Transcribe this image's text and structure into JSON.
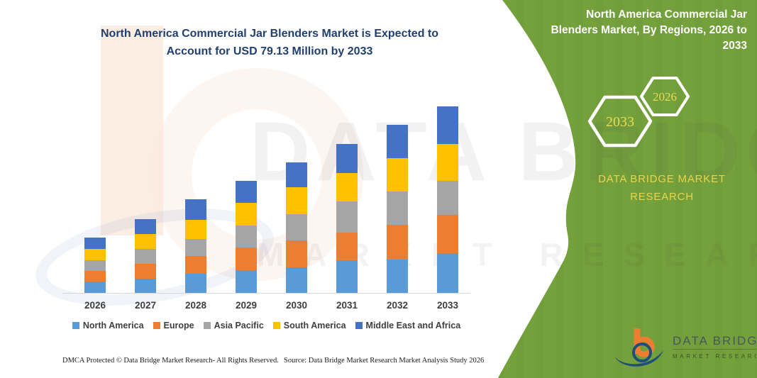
{
  "page_title": "North America Commercial Jar Blenders Market chart",
  "colors": {
    "green_panel": "#74A13C",
    "title_navy": "#21406F",
    "hex_year_yellow": "#EBD952",
    "brand_yellow": "#E9D44E",
    "axis_text": "#3F3F3F",
    "series_north_america": "#5B9BD5",
    "series_europe": "#ED7D31",
    "series_asia_pacific": "#A5A5A5",
    "series_south_america": "#FFC000",
    "series_mea": "#4472C4"
  },
  "main_title": {
    "line1": "North America Commercial Jar Blenders Market is Expected to",
    "line2": "Account for USD 79.13 Million by 2033"
  },
  "chart_data": {
    "type": "bar",
    "stacked": true,
    "title": "North America Commercial Jar Blenders Market is Expected to Account for USD 79.13 Million by 2033",
    "unit": "USD Million",
    "categories": [
      "2026",
      "2027",
      "2028",
      "2029",
      "2030",
      "2031",
      "2032",
      "2033"
    ],
    "series": [
      {
        "name": "North America",
        "color": "#5B9BD5",
        "values": [
          4.9,
          6.0,
          8.0,
          9.5,
          10.7,
          14.0,
          14.2,
          16.8
        ]
      },
      {
        "name": "Europe",
        "color": "#ED7D31",
        "values": [
          4.3,
          6.3,
          7.8,
          9.7,
          11.5,
          11.5,
          14.6,
          16.2
        ]
      },
      {
        "name": "Asia Pacific",
        "color": "#A5A5A5",
        "values": [
          4.6,
          6.5,
          7.2,
          9.3,
          11.3,
          13.3,
          14.2,
          14.7
        ]
      },
      {
        "name": "South America",
        "color": "#FFC000",
        "values": [
          4.9,
          6.2,
          8.0,
          9.8,
          11.2,
          12.2,
          14.3,
          15.5
        ]
      },
      {
        "name": "Middle East and Africa",
        "color": "#4472C4",
        "values": [
          4.9,
          6.4,
          8.6,
          9.2,
          10.7,
          12.2,
          14.0,
          15.93
        ]
      }
    ],
    "totals": [
      23.6,
      31.4,
      39.6,
      47.5,
      55.4,
      63.2,
      71.3,
      79.13
    ],
    "xlabel": "",
    "ylabel": "",
    "ylim": [
      0,
      79.13
    ],
    "grid": false,
    "legend_position": "bottom"
  },
  "right_panel": {
    "title_lines": [
      "North America Commercial Jar",
      "Blenders Market, By Regions, 2026 to",
      "2033"
    ],
    "hexagons": [
      {
        "label": "2033"
      },
      {
        "label": "2026"
      }
    ],
    "brand_line1": "DATA BRIDGE MARKET",
    "brand_line2": "RESEARCH"
  },
  "watermark": {
    "line1": "DATA BRIDGE",
    "line2": "MARKET RESEARCH"
  },
  "footer": {
    "left": "DMCA Protected © Data Bridge Market Research-  All Rights Reserved.",
    "right": "Source: Data Bridge Market Research  Market Analysis Study 2026"
  },
  "logo": {
    "name": "DATA BRIDGE",
    "subtitle": "MARKET RESEARCH"
  }
}
